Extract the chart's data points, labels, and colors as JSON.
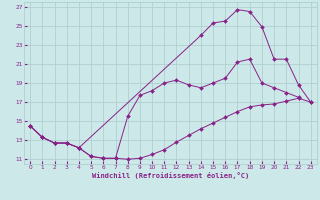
{
  "xlabel": "Windchill (Refroidissement éolien,°C)",
  "bg_color": "#cce8e8",
  "grid_color": "#b0d0d0",
  "line_color": "#882288",
  "xlim": [
    -0.5,
    23.5
  ],
  "ylim": [
    10.5,
    27.5
  ],
  "xticks": [
    0,
    1,
    2,
    3,
    4,
    5,
    6,
    7,
    8,
    9,
    10,
    11,
    12,
    13,
    14,
    15,
    16,
    17,
    18,
    19,
    20,
    21,
    22,
    23
  ],
  "yticks": [
    11,
    13,
    15,
    17,
    19,
    21,
    23,
    25,
    27
  ],
  "line1_x": [
    0,
    1,
    2,
    3,
    4,
    5,
    6,
    7,
    8,
    9,
    10,
    11,
    12,
    13,
    14,
    15,
    16,
    17,
    18,
    19,
    20,
    21,
    22,
    23
  ],
  "line1_y": [
    14.5,
    13.3,
    12.7,
    12.7,
    12.2,
    11.3,
    11.1,
    11.1,
    11.0,
    11.1,
    11.5,
    12.0,
    12.8,
    13.5,
    14.2,
    14.8,
    15.4,
    16.0,
    16.5,
    16.7,
    16.8,
    17.1,
    17.4,
    17.0
  ],
  "line2_x": [
    0,
    1,
    2,
    3,
    4,
    5,
    6,
    7,
    8,
    9,
    10,
    11,
    12,
    13,
    14,
    15,
    16,
    17,
    18,
    19,
    20,
    21,
    22
  ],
  "line2_y": [
    14.5,
    13.3,
    12.7,
    12.7,
    12.2,
    11.3,
    11.1,
    11.1,
    15.5,
    17.7,
    18.2,
    19.0,
    19.3,
    18.8,
    18.5,
    19.0,
    19.5,
    21.2,
    21.5,
    19.0,
    18.5,
    18.0,
    17.5
  ],
  "line3_x": [
    0,
    1,
    2,
    3,
    4,
    14,
    15,
    16,
    17,
    18,
    19,
    20,
    21,
    22,
    23
  ],
  "line3_y": [
    14.5,
    13.3,
    12.7,
    12.7,
    12.2,
    24.0,
    25.3,
    25.5,
    26.7,
    26.5,
    24.9,
    21.5,
    21.5,
    18.8,
    17.0
  ]
}
